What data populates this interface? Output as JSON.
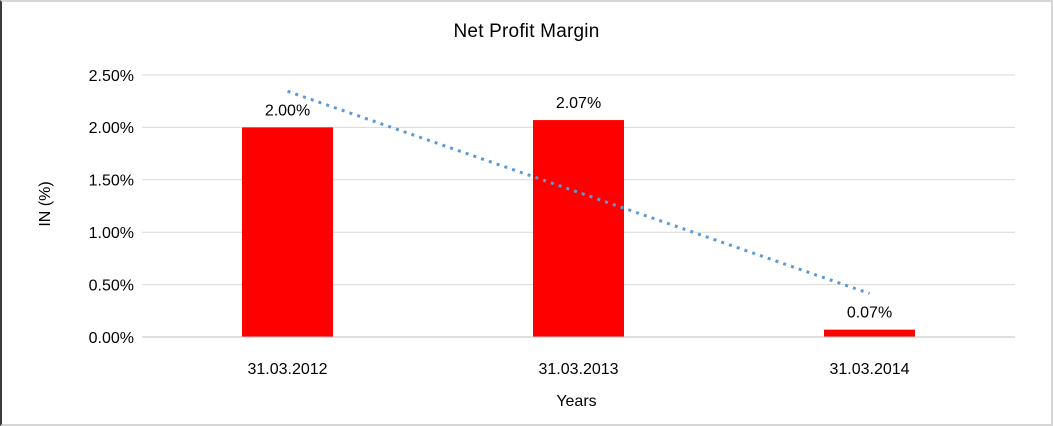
{
  "chart_data": {
    "type": "bar",
    "title": "Net Profit Margin",
    "xlabel": "Years",
    "ylabel": "IN (%)",
    "categories": [
      "31.03.2012",
      "31.03.2013",
      "31.03.2014"
    ],
    "values": [
      2.0,
      2.07,
      0.07
    ],
    "data_labels": [
      "2.00%",
      "2.07%",
      "0.07%"
    ],
    "ylim": [
      0,
      2.5
    ],
    "yticks": [
      0,
      0.5,
      1.0,
      1.5,
      2.0,
      2.5
    ],
    "ytick_labels": [
      "0.00%",
      "0.50%",
      "1.00%",
      "1.50%",
      "2.00%",
      "2.50%"
    ],
    "grid": "horizontal",
    "legend": "none",
    "bar_color": "#ff0000",
    "gridline_color": "#d9d9d9",
    "axis_line_color": "#bfbfbf",
    "text_color": "#000000",
    "trendline": {
      "type": "linear",
      "style": "dotted",
      "color": "#5b9bd5",
      "start_value": 2.345,
      "end_value": 0.415
    }
  }
}
